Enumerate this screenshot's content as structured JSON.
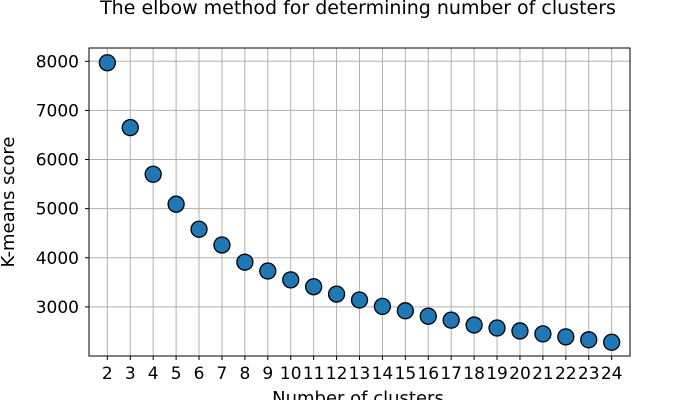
{
  "chart_data": {
    "type": "scatter",
    "title": "The elbow method for determining number of clusters",
    "xlabel": "Number of clusters",
    "ylabel": "K-means score",
    "x": [
      2,
      3,
      4,
      5,
      6,
      7,
      8,
      9,
      10,
      11,
      12,
      13,
      14,
      15,
      16,
      17,
      18,
      19,
      20,
      21,
      22,
      23,
      24
    ],
    "y": [
      7970,
      6650,
      5700,
      5090,
      4580,
      4260,
      3910,
      3730,
      3550,
      3410,
      3260,
      3140,
      3010,
      2920,
      2810,
      2730,
      2630,
      2570,
      2510,
      2450,
      2390,
      2330,
      2280
    ],
    "xticks": [
      2,
      3,
      4,
      5,
      6,
      7,
      8,
      9,
      10,
      11,
      12,
      13,
      14,
      15,
      16,
      17,
      18,
      19,
      20,
      21,
      22,
      23,
      24
    ],
    "yticks": [
      3000,
      4000,
      5000,
      6000,
      7000,
      8000
    ],
    "xlim": [
      1.2,
      24.8
    ],
    "ylim": [
      2000,
      8270
    ],
    "grid": true,
    "marker_color": "#1f77b4",
    "marker_edge_color": "#000000"
  }
}
